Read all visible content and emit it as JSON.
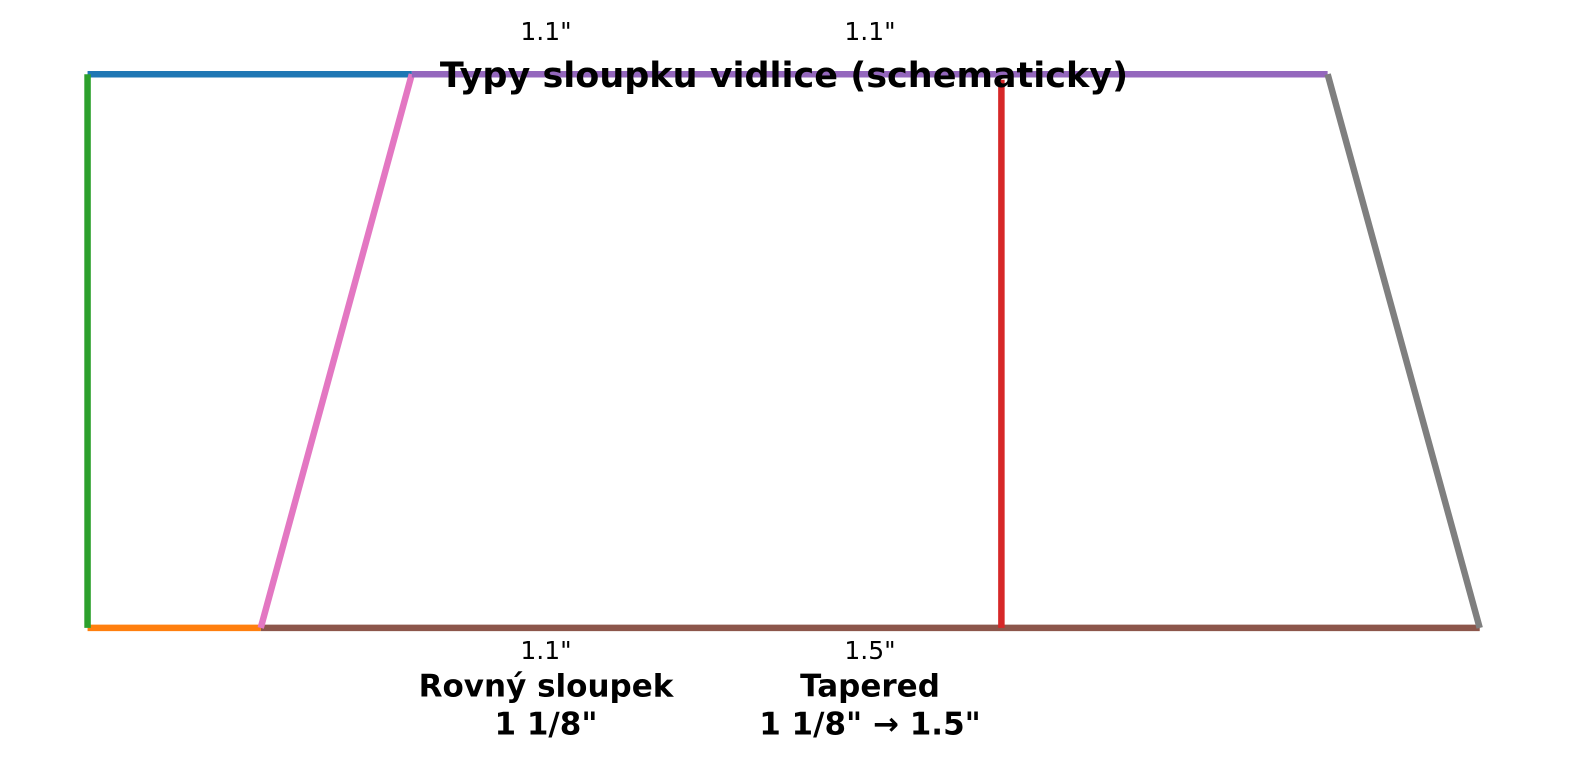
{
  "chart_data": {
    "type": "line",
    "title": "Typy sloupku vidlice (schematicky)",
    "xlim": [
      -0.27,
      4.63
    ],
    "ylim": [
      -0.262,
      1.134
    ],
    "series": [
      {
        "color": "#8c564b",
        "x": [
          0.534,
          4.293
        ],
        "values": [
          0,
          0
        ]
      },
      {
        "color": "#1f77b4",
        "x": [
          0,
          1
        ],
        "values": [
          1,
          1
        ]
      },
      {
        "color": "#ff7f0e",
        "x": [
          0,
          0.534
        ],
        "values": [
          0,
          0
        ]
      },
      {
        "color": "#2ca02c",
        "x": [
          0,
          0
        ],
        "values": [
          0,
          1
        ]
      },
      {
        "color": "#e377c2",
        "x": [
          0.534,
          1
        ],
        "values": [
          0,
          1
        ]
      },
      {
        "color": "#9467bd",
        "x": [
          1,
          3.824
        ],
        "values": [
          1,
          1
        ]
      },
      {
        "color": "#d62728",
        "x": [
          2.818,
          2.818
        ],
        "values": [
          0.99,
          0
        ]
      },
      {
        "color": "#7f7f7f",
        "x": [
          3.824,
          4.293
        ],
        "values": [
          1,
          0
        ]
      }
    ],
    "annotations": [
      "1.1\"",
      "1.1\"",
      "1.1\"",
      "1.5\""
    ],
    "labels": [
      {
        "lines": [
          "Rovný sloupek",
          "1 1/8\""
        ]
      },
      {
        "lines": [
          "Tapered",
          "1 1/8\" → 1.5\""
        ]
      }
    ]
  }
}
